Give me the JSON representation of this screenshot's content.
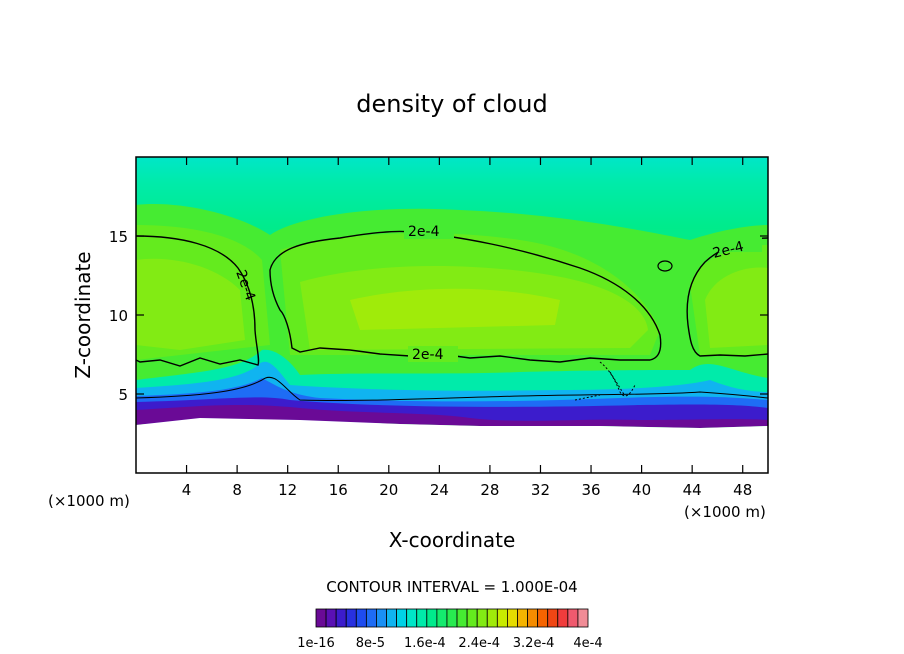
{
  "chart_data": {
    "type": "heatmap",
    "title": "density of cloud",
    "xlabel": "X-coordinate",
    "ylabel": "Z-coordinate",
    "x_unit": "(×1000 m)",
    "z_unit": "(×1000 m)",
    "xlim": [
      0,
      50
    ],
    "ylim": [
      0,
      20
    ],
    "x_ticks": [
      4,
      8,
      12,
      16,
      20,
      24,
      28,
      32,
      36,
      40,
      44,
      48
    ],
    "y_ticks": [
      5,
      10,
      15
    ],
    "contour_interval_text": "CONTOUR INTERVAL = 1.000E-04",
    "contour_labels": [
      "2e-4",
      "2e-4",
      "2e-4",
      "2e-4",
      "2e-4"
    ],
    "colorbar_labels": [
      "1e-16",
      "8e-5",
      "1.6e-4",
      "2.4e-4",
      "3.2e-4",
      "4e-4"
    ],
    "colorbar_colors": [
      "#6a0a96",
      "#5a10b4",
      "#3c1ccc",
      "#2830e0",
      "#1e4cf0",
      "#1e6cf5",
      "#1a90f5",
      "#10b4f0",
      "#00d2e6",
      "#00e6c8",
      "#00ebaa",
      "#00eb8c",
      "#14eb6e",
      "#28eb50",
      "#46eb32",
      "#64eb1e",
      "#82eb14",
      "#a0eb0a",
      "#c8eb00",
      "#e6dc00",
      "#f5b400",
      "#f58c00",
      "#f56400",
      "#f04614",
      "#f03c3c",
      "#f05a6e",
      "#f08c96"
    ],
    "field_description_levels": {
      "bottom_cloud_base_z": 3.7,
      "dense_core_value": "2e-4"
    }
  }
}
